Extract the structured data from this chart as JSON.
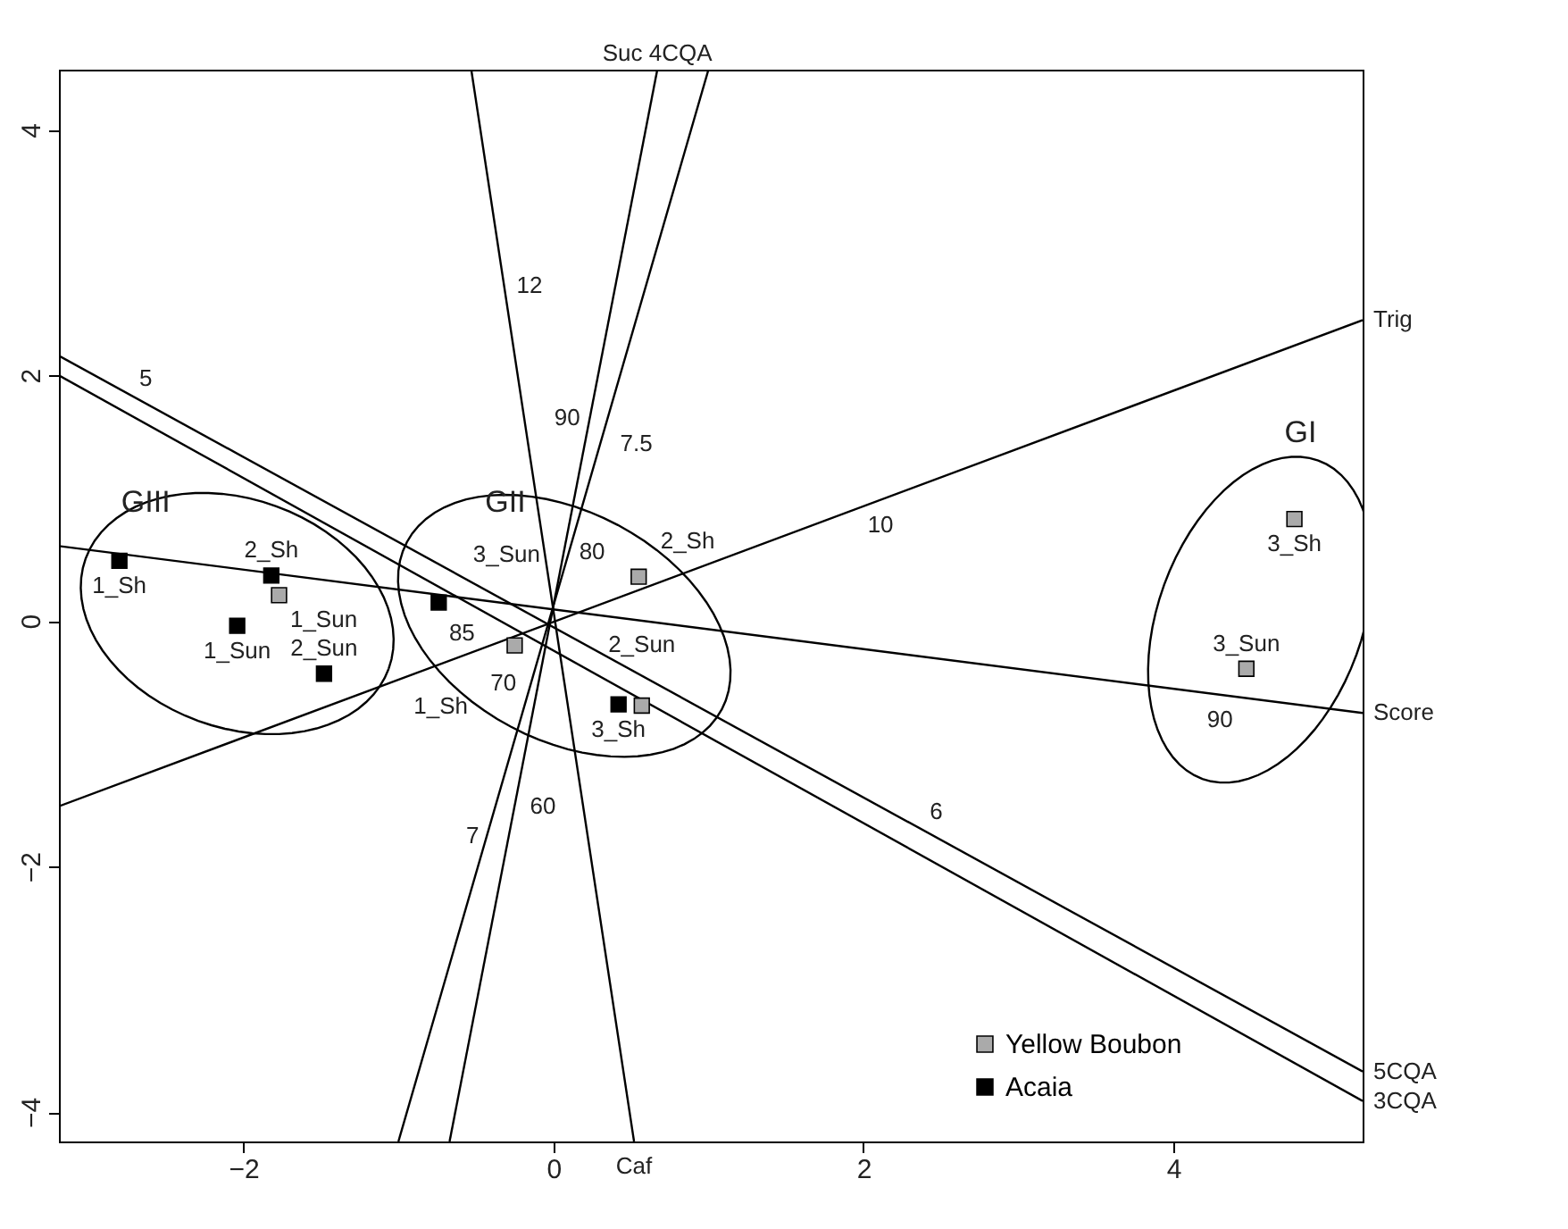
{
  "chart_data": {
    "type": "scatter",
    "xlim": [
      -3.19,
      5.22
    ],
    "ylim": [
      -4.24,
      4.49
    ],
    "xticks": [
      -2,
      0,
      2,
      4
    ],
    "yticks": [
      -4,
      -2,
      0,
      2,
      4
    ],
    "grid": false,
    "legend": "bottom right",
    "marker": "square",
    "series": [
      {
        "name": "Yellow Boubon",
        "color": "#aaaaaa",
        "x": [
          -1.77,
          0.55,
          -0.25,
          0.57,
          4.78,
          4.47
        ],
        "values": [
          0.21,
          0.36,
          -0.2,
          -0.69,
          0.83,
          -0.39
        ]
      },
      {
        "name": "Acaia",
        "color": "#000000",
        "x": [
          -2.8,
          -1.82,
          -2.04,
          -1.48,
          -0.74,
          0.42
        ],
        "values": [
          0.49,
          0.37,
          -0.04,
          -0.43,
          0.15,
          -0.68
        ]
      },
      {
        "type": "line",
        "marker": "none",
        "line_style": "solid",
        "color": "#000000",
        "x": [
          -3.19,
          5.22
        ],
        "values": [
          -1.51,
          2.45
        ]
      },
      {
        "type": "line",
        "marker": "none",
        "line_style": "solid",
        "color": "#000000",
        "x": [
          -3.19,
          5.22
        ],
        "values": [
          0.61,
          -0.75
        ]
      },
      {
        "type": "line",
        "marker": "none",
        "line_style": "solid",
        "color": "#000000",
        "x": [
          -3.19,
          5.22
        ],
        "values": [
          2.16,
          -3.67
        ]
      },
      {
        "type": "line",
        "marker": "none",
        "line_style": "solid",
        "color": "#000000",
        "x": [
          -3.19,
          5.22
        ],
        "values": [
          2.0,
          -3.91
        ]
      },
      {
        "type": "line",
        "marker": "none",
        "line_style": "solid",
        "color": "#000000",
        "x": [
          -0.67,
          0.67
        ],
        "values": [
          -4.24,
          4.49
        ]
      },
      {
        "type": "line",
        "marker": "none",
        "line_style": "solid",
        "color": "#000000",
        "x": [
          -1.0,
          1.0
        ],
        "values": [
          -4.24,
          4.49
        ]
      },
      {
        "type": "line",
        "marker": "none",
        "line_style": "solid",
        "color": "#000000",
        "x": [
          -0.53,
          0.52
        ],
        "values": [
          4.49,
          -4.24
        ]
      }
    ],
    "annotations": [
      "GIII",
      "GII",
      "GI",
      {
        "text": "1_Sh",
        "x": -2.8,
        "y": 0.49
      },
      {
        "text": "2_Sh",
        "x": -1.82,
        "y": 0.37
      },
      {
        "text": "1_Sun",
        "x": -1.77,
        "y": 0.21
      },
      {
        "text": "1_Sun",
        "x": -2.04,
        "y": -0.04
      },
      {
        "text": "2_Sun",
        "x": -1.48,
        "y": -0.43
      },
      {
        "text": "3_Sun",
        "x": -0.74,
        "y": 0.15
      },
      {
        "text": "2_Sh",
        "x": 0.55,
        "y": 0.36
      },
      {
        "text": "1_Sh",
        "x": -0.25,
        "y": -0.2
      },
      {
        "text": "3_Sh",
        "x": 0.42,
        "y": -0.68
      },
      {
        "text": "2_Sun",
        "x": 0.57,
        "y": -0.69
      },
      {
        "text": "3_Sh",
        "x": 4.78,
        "y": 0.83
      },
      {
        "text": "3_Sun",
        "x": 4.47,
        "y": -0.39
      },
      {
        "text": "12",
        "x": -0.318,
        "y": 2.73
      },
      {
        "text": "5",
        "x": -2.63,
        "y": 1.77
      },
      {
        "text": "90",
        "x": 0.253,
        "y": 1.65
      },
      {
        "text": "7.5",
        "x": 0.33,
        "y": 1.44
      },
      {
        "text": "80",
        "x": 0.086,
        "y": 0.56
      },
      {
        "text": "85",
        "x": -0.59,
        "y": 0.189
      },
      {
        "text": "70",
        "x": 0.071,
        "y": -0.51
      },
      {
        "text": "60",
        "x": -0.232,
        "y": -1.51
      },
      {
        "text": "7",
        "x": -0.4,
        "y": -1.75
      },
      {
        "text": "10",
        "x": 2.11,
        "y": 0.986
      },
      {
        "text": "6",
        "x": 2.47,
        "y": -1.76
      },
      {
        "text": "90",
        "x": 4.3,
        "y": -0.601
      },
      {
        "text": "Suc 4CQA",
        "x": 0.67,
        "y": 4.49
      },
      {
        "text": "Trig",
        "x": 5.22,
        "y": 2.45
      },
      {
        "text": "Score",
        "x": 5.22,
        "y": -0.75
      },
      {
        "text": "5CQA",
        "x": 5.22,
        "y": -3.67
      },
      {
        "text": "3CQA",
        "x": 5.22,
        "y": -3.91
      },
      {
        "text": "Caf",
        "x": 0.52,
        "y": -4.24
      }
    ]
  }
}
